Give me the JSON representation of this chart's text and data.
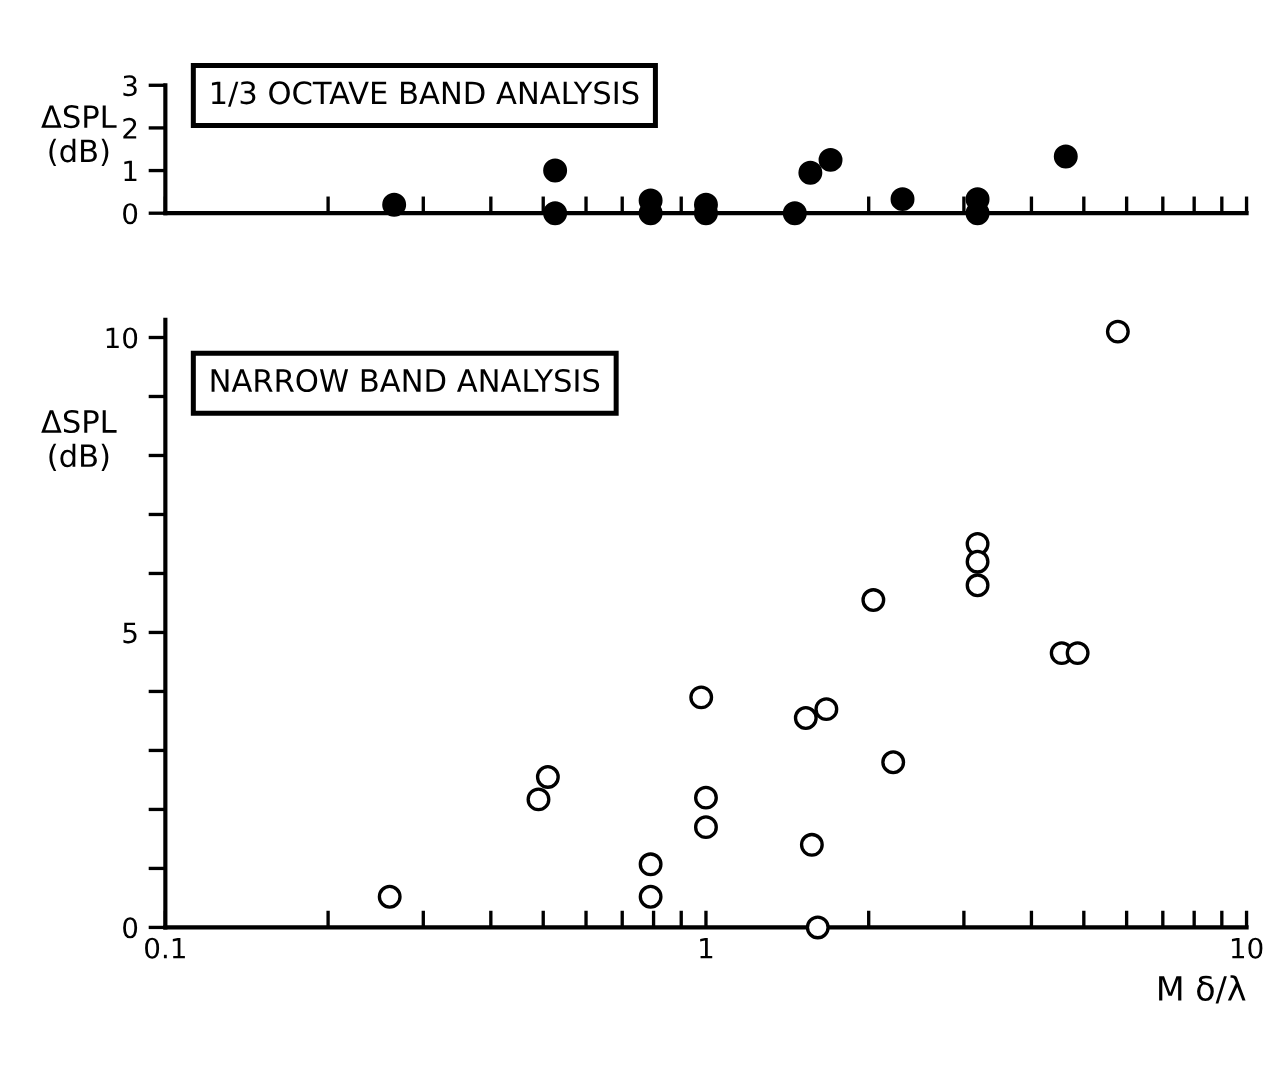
{
  "chart_data": [
    {
      "type": "scatter",
      "title": "1/3 OCTAVE BAND ANALYSIS",
      "ylabel": "ΔSPL\n(dB)",
      "log": "x",
      "marker": "circle",
      "tick_labels": "y",
      "xlim": [
        0.1,
        10
      ],
      "ylim": [
        0,
        3
      ],
      "xticks": [
        {
          "value": 0.1,
          "label": null
        },
        {
          "value": 0.2,
          "label": null
        },
        {
          "value": 0.3,
          "label": null
        },
        {
          "value": 0.4,
          "label": null
        },
        {
          "value": 0.5,
          "label": null
        },
        {
          "value": 0.6,
          "label": null
        },
        {
          "value": 0.7,
          "label": null
        },
        {
          "value": 0.8,
          "label": null
        },
        {
          "value": 0.9,
          "label": null
        },
        {
          "value": 1,
          "label": null
        },
        {
          "value": 2,
          "label": null
        },
        {
          "value": 3,
          "label": null
        },
        {
          "value": 4,
          "label": null
        },
        {
          "value": 5,
          "label": null
        },
        {
          "value": 6,
          "label": null
        },
        {
          "value": 7,
          "label": null
        },
        {
          "value": 8,
          "label": null
        },
        {
          "value": 9,
          "label": null
        },
        {
          "value": 10,
          "label": null
        }
      ],
      "yticks": [
        0,
        1,
        2,
        3
      ],
      "series": [
        {
          "color": "#000000",
          "x": [
            0.265,
            0.526,
            0.526,
            0.79,
            0.79,
            1.0,
            1.0,
            1.46,
            1.56,
            1.7,
            2.31,
            3.18,
            3.18,
            4.63
          ],
          "values": [
            0.2,
            1.0,
            0,
            0.3,
            0,
            0.2,
            0,
            0,
            0.95,
            1.25,
            0.33,
            0.33,
            0,
            1.33
          ]
        }
      ]
    },
    {
      "type": "scatter",
      "title": "NARROW BAND ANALYSIS",
      "ylabel": "ΔSPL\n(dB)",
      "xlabel": "M δ/λ",
      "log": "x",
      "marker": "circle",
      "xlim": [
        0.1,
        10
      ],
      "ylim": [
        0,
        10.3
      ],
      "xticks": [
        0.1,
        {
          "value": 0.2,
          "label": null
        },
        {
          "value": 0.3,
          "label": null
        },
        {
          "value": 0.4,
          "label": null
        },
        {
          "value": 0.5,
          "label": null
        },
        {
          "value": 0.6,
          "label": null
        },
        {
          "value": 0.7,
          "label": null
        },
        {
          "value": 0.8,
          "label": null
        },
        {
          "value": 0.9,
          "label": null
        },
        1,
        {
          "value": 2,
          "label": null
        },
        {
          "value": 3,
          "label": null
        },
        {
          "value": 4,
          "label": null
        },
        {
          "value": 5,
          "label": null
        },
        {
          "value": 6,
          "label": null
        },
        {
          "value": 7,
          "label": null
        },
        {
          "value": 8,
          "label": null
        },
        {
          "value": 9,
          "label": null
        },
        10
      ],
      "yticks": [
        0,
        {
          "value": 1,
          "label": null
        },
        {
          "value": 2,
          "label": null
        },
        {
          "value": 3,
          "label": null
        },
        {
          "value": 4,
          "label": null
        },
        5,
        {
          "value": 6,
          "label": null
        },
        {
          "value": 7,
          "label": null
        },
        {
          "value": 8,
          "label": null
        },
        {
          "value": 9,
          "label": null
        },
        10
      ],
      "series": [
        {
          "color": "#ffffff",
          "x": [
            5.78,
            2.04,
            3.18,
            3.18,
            3.18,
            4.55,
            4.87,
            0.98,
            1.53,
            1.67,
            2.22,
            0.51,
            0.49,
            1.0,
            1.0,
            1.57,
            0.79,
            0.79,
            0.26,
            1.61
          ],
          "values": [
            10.1,
            5.55,
            6.5,
            6.2,
            5.8,
            4.65,
            4.65,
            3.9,
            3.55,
            3.7,
            2.8,
            2.55,
            2.17,
            2.2,
            1.7,
            1.4,
            1.07,
            0.52,
            0.52,
            0
          ]
        }
      ]
    }
  ]
}
